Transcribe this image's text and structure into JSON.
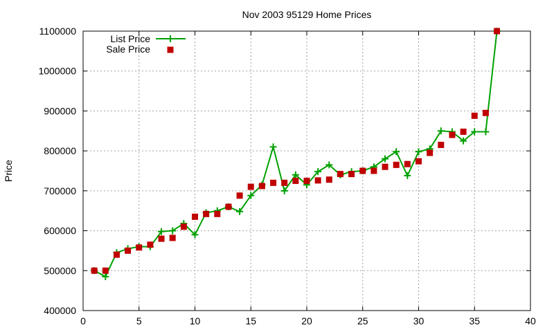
{
  "chart_data": {
    "type": "line",
    "title": "Nov 2003 95129 Home Prices",
    "xlabel": "",
    "ylabel": "Price",
    "xlim": [
      0,
      40
    ],
    "ylim": [
      400000,
      1100000
    ],
    "xticks": [
      0,
      5,
      10,
      15,
      20,
      25,
      30,
      35,
      40
    ],
    "yticks": [
      400000,
      500000,
      600000,
      700000,
      800000,
      900000,
      1000000,
      1100000
    ],
    "grid": true,
    "legend_position": "top-left",
    "series": [
      {
        "name": "List Price",
        "style": "line-with-plus-markers",
        "color": "#00a000",
        "x": [
          1,
          2,
          3,
          4,
          5,
          6,
          7,
          8,
          9,
          10,
          11,
          12,
          13,
          14,
          15,
          16,
          17,
          18,
          19,
          20,
          21,
          22,
          23,
          24,
          25,
          26,
          27,
          28,
          29,
          30,
          31,
          32,
          33,
          34,
          35,
          36,
          37
        ],
        "y": [
          500000,
          485000,
          545000,
          555000,
          560000,
          560000,
          598000,
          600000,
          618000,
          590000,
          645000,
          650000,
          660000,
          648000,
          688000,
          715000,
          810000,
          700000,
          740000,
          715000,
          748000,
          765000,
          740000,
          748000,
          750000,
          760000,
          780000,
          798000,
          738000,
          798000,
          805000,
          850000,
          848000,
          825000,
          848000,
          848000,
          1100000
        ]
      },
      {
        "name": "Sale Price",
        "style": "square-markers",
        "color": "#c00000",
        "x": [
          1,
          2,
          3,
          4,
          5,
          6,
          7,
          8,
          9,
          10,
          11,
          12,
          13,
          14,
          15,
          16,
          17,
          18,
          19,
          20,
          21,
          22,
          23,
          24,
          25,
          26,
          27,
          28,
          29,
          30,
          31,
          32,
          33,
          34,
          35,
          36,
          37
        ],
        "y": [
          500000,
          500000,
          540000,
          550000,
          558000,
          565000,
          580000,
          582000,
          610000,
          635000,
          642000,
          642000,
          660000,
          688000,
          710000,
          712000,
          720000,
          720000,
          725000,
          725000,
          726000,
          728000,
          742000,
          742000,
          750000,
          750000,
          760000,
          765000,
          767000,
          774000,
          795000,
          815000,
          840000,
          848000,
          888000,
          895000,
          1100000
        ]
      }
    ]
  }
}
